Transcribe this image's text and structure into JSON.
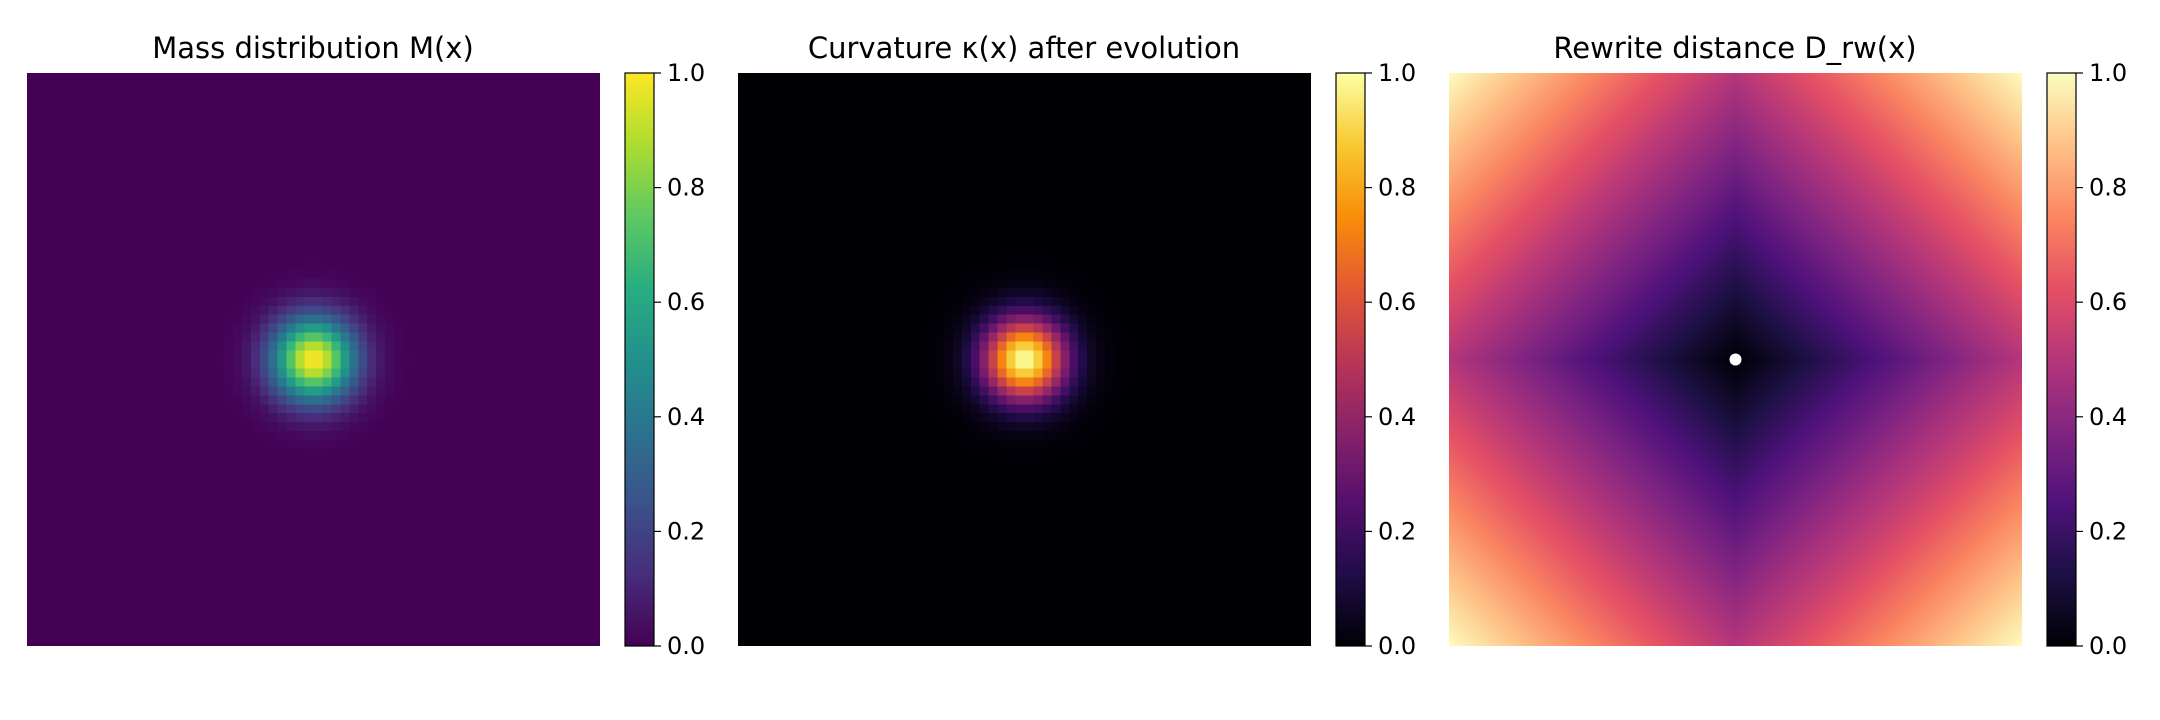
{
  "chart_data": [
    {
      "type": "heatmap",
      "title": "Mass distribution M(x)",
      "colormap": "viridis",
      "field": "gaussian",
      "grid_size": 64,
      "center": [
        0.5,
        0.5
      ],
      "sigma": 0.05,
      "clim": [
        0.0,
        1.0
      ],
      "colorbar_ticks": [
        "0.0",
        "0.2",
        "0.4",
        "0.6",
        "0.8",
        "1.0"
      ],
      "axes_visible": false
    },
    {
      "type": "heatmap",
      "title": "Curvature κ(x) after evolution",
      "colormap": "inferno",
      "field": "gaussian",
      "grid_size": 64,
      "center": [
        0.5,
        0.5
      ],
      "sigma": 0.05,
      "clim": [
        0.0,
        1.0
      ],
      "colorbar_ticks": [
        "0.0",
        "0.2",
        "0.4",
        "0.6",
        "0.8",
        "1.0"
      ],
      "axes_visible": false
    },
    {
      "type": "heatmap",
      "title": "Rewrite distance D_rw(x)",
      "colormap": "magma",
      "field": "l1_distance",
      "grid_size": 64,
      "center": [
        0.5,
        0.5
      ],
      "clim": [
        0.0,
        1.0
      ],
      "colorbar_ticks": [
        "0.0",
        "0.2",
        "0.4",
        "0.6",
        "0.8",
        "1.0"
      ],
      "marker": {
        "x": 0.5,
        "y": 0.5,
        "color": "#ffffff"
      },
      "axes_visible": false
    }
  ]
}
